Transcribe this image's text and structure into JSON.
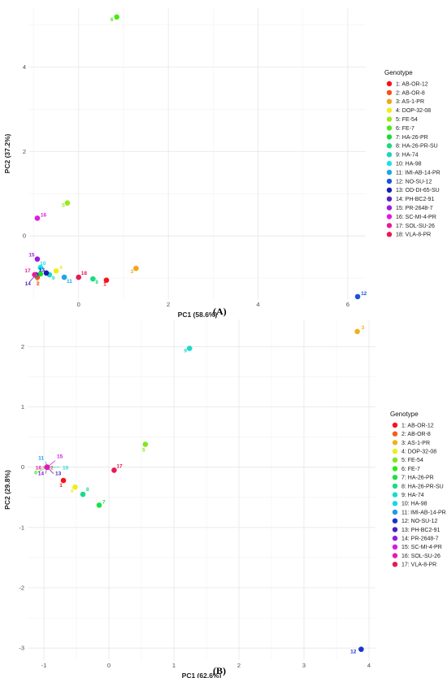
{
  "panel_labels": [
    "(A)",
    "(B)"
  ],
  "chart_data": [
    {
      "type": "scatter",
      "panel": "(A)",
      "xlabel": "PC1 (58.6%)",
      "ylabel": "PC2 (37.2%)",
      "xlim": [
        -1.1,
        6.4
      ],
      "ylim": [
        -1.5,
        5.4
      ],
      "xticks": [
        0,
        2,
        4,
        6
      ],
      "yticks": [
        0,
        2,
        4
      ],
      "grid": true,
      "legend_title": "Genotype",
      "legend_placement": "right",
      "labels_on_points": true,
      "points": [
        {
          "id": "1",
          "label": "1: AB-OR-12",
          "x": 0.62,
          "y": -1.05,
          "color": "#F8111A"
        },
        {
          "id": "2",
          "label": "2: AB-OR-8",
          "x": -0.92,
          "y": -0.98,
          "color": "#F5501A"
        },
        {
          "id": "3",
          "label": "3: AS-1-PR",
          "x": 1.28,
          "y": -0.77,
          "color": "#F2A51A"
        },
        {
          "id": "4",
          "label": "4: DOP-32-08",
          "x": -0.5,
          "y": -0.83,
          "color": "#EEEE1A"
        },
        {
          "id": "5",
          "label": "5: FE-54",
          "x": -0.25,
          "y": 0.78,
          "color": "#9CE81A"
        },
        {
          "id": "6",
          "label": "6: FE-7",
          "x": 0.85,
          "y": 5.19,
          "color": "#4CE81A"
        },
        {
          "id": "7",
          "label": "7: HA-26-PR",
          "x": -0.85,
          "y": -0.9,
          "color": "#16DC33"
        },
        {
          "id": "8",
          "label": "8: HA-26-PR-SU",
          "x": 0.32,
          "y": -1.02,
          "color": "#1ADB7D"
        },
        {
          "id": "9",
          "label": "9: HA-74",
          "x": -0.65,
          "y": -0.92,
          "color": "#1AD6C2"
        },
        {
          "id": "10",
          "label": "10: HA-98",
          "x": -0.85,
          "y": -0.75,
          "color": "#1AE2E8"
        },
        {
          "id": "11",
          "label": "11: IMI-AB-14-PR",
          "x": -0.32,
          "y": -0.98,
          "color": "#1AA7E8"
        },
        {
          "id": "12",
          "label": "12: NO-SU-12",
          "x": 6.22,
          "y": -1.44,
          "color": "#1A53D9"
        },
        {
          "id": "13",
          "label": "13: OD-DI-65-SU",
          "x": -0.72,
          "y": -0.88,
          "color": "#1A1AB8"
        },
        {
          "id": "14",
          "label": "14: PH-BC2-91",
          "x": -0.95,
          "y": -0.92,
          "color": "#5522C8"
        },
        {
          "id": "15",
          "label": "15: PR-2648-7",
          "x": -0.92,
          "y": -0.55,
          "color": "#A21AD9"
        },
        {
          "id": "16",
          "label": "16: SC-MI-4-PR",
          "x": -0.92,
          "y": 0.42,
          "color": "#E01AE0"
        },
        {
          "id": "17",
          "label": "17: SOL-SU-26",
          "x": -0.98,
          "y": -0.92,
          "color": "#E81A9A"
        },
        {
          "id": "18",
          "label": "18: VLA-8-PR",
          "x": 0.0,
          "y": -0.98,
          "color": "#E81A55"
        }
      ]
    },
    {
      "type": "scatter",
      "panel": "(B)",
      "xlabel": "PC1 (62.6%)",
      "ylabel": "PC2 (29.8%)",
      "xlim": [
        -1.25,
        4.1
      ],
      "ylim": [
        -3.2,
        2.45
      ],
      "xticks": [
        -1,
        0,
        1,
        2,
        3,
        4
      ],
      "yticks": [
        -3,
        -2,
        -1,
        0,
        1,
        2
      ],
      "grid": true,
      "legend_title": "Genotype",
      "legend_placement": "right",
      "labels_on_points": true,
      "points": [
        {
          "id": "1",
          "label": "1: AB-OR-12",
          "x": -0.7,
          "y": -0.22,
          "color": "#F8111A"
        },
        {
          "id": "2",
          "label": "2: AB-OR-8",
          "x": -0.95,
          "y": 0.0,
          "color": "#F55E1A"
        },
        {
          "id": "3",
          "label": "3: AS-1-PR",
          "x": 3.82,
          "y": 2.25,
          "color": "#F2AF1A"
        },
        {
          "id": "4",
          "label": "4: DOP-32-08",
          "x": -0.52,
          "y": -0.33,
          "color": "#EEEE1A"
        },
        {
          "id": "5",
          "label": "5: FE-54",
          "x": 0.56,
          "y": 0.38,
          "color": "#7EE81A"
        },
        {
          "id": "6",
          "label": "6: FE-7",
          "x": -0.95,
          "y": 0.0,
          "color": "#2EE81A"
        },
        {
          "id": "7",
          "label": "7: HA-26-PR",
          "x": -0.15,
          "y": -0.63,
          "color": "#1AE048"
        },
        {
          "id": "8",
          "label": "8: HA-26-PR-SU",
          "x": -0.4,
          "y": -0.45,
          "color": "#1ADB86"
        },
        {
          "id": "9",
          "label": "9: HA-74",
          "x": 1.24,
          "y": 1.97,
          "color": "#1ADBCC"
        },
        {
          "id": "10",
          "label": "10: HA-98",
          "x": -0.95,
          "y": 0.0,
          "color": "#1AD6E8"
        },
        {
          "id": "11",
          "label": "11: IMI-AB-14-PR",
          "x": -0.95,
          "y": 0.0,
          "color": "#1A9CE8"
        },
        {
          "id": "12",
          "label": "12: NO-SU-12",
          "x": 3.88,
          "y": -3.02,
          "color": "#1A33D0"
        },
        {
          "id": "13",
          "label": "13: PH-BC2-91",
          "x": -0.95,
          "y": 0.0,
          "color": "#4422C0"
        },
        {
          "id": "14",
          "label": "14: PR-2648-7",
          "x": -0.95,
          "y": 0.0,
          "color": "#8E22D0"
        },
        {
          "id": "15",
          "label": "15: SC-MI-4-PR",
          "x": -0.95,
          "y": 0.0,
          "color": "#D41AE0"
        },
        {
          "id": "16",
          "label": "16: SOL-SU-26",
          "x": -0.95,
          "y": 0.0,
          "color": "#E81AAA"
        },
        {
          "id": "17",
          "label": "17: VLA-8-PR",
          "x": 0.08,
          "y": -0.05,
          "color": "#E81A55"
        }
      ]
    }
  ]
}
